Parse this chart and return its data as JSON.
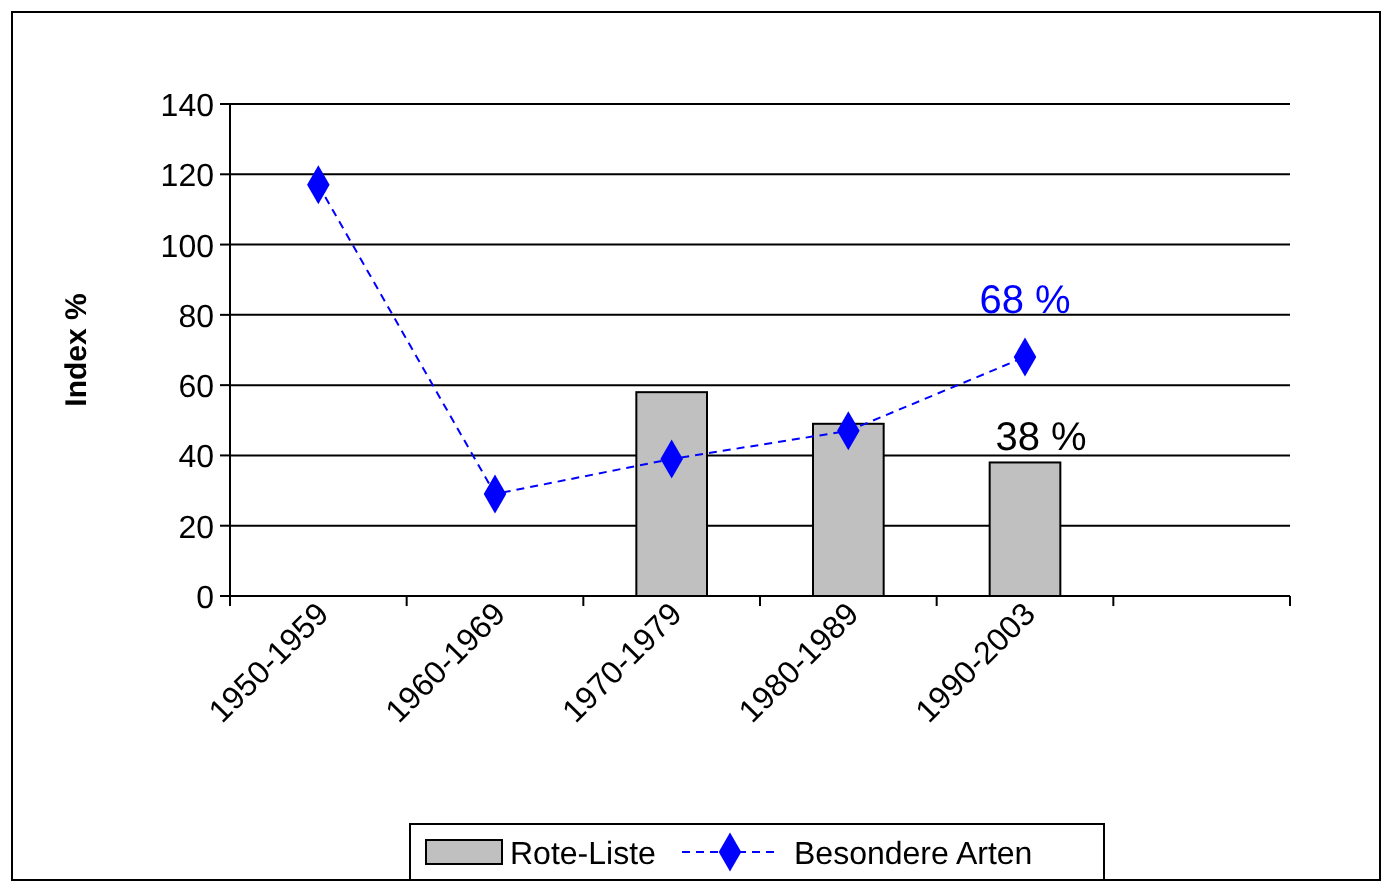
{
  "chart_data": {
    "type": "bar",
    "ylabel": "Index %",
    "categories": [
      "1950-1959",
      "1960-1969",
      "1970-1979",
      "1980-1989",
      "1990-2003",
      null
    ],
    "series": [
      {
        "name": "Rote-Liste",
        "color": "#c0c0c0",
        "values": [
          null,
          null,
          58,
          49,
          38,
          null
        ],
        "value_labels": [
          null,
          null,
          null,
          null,
          "38 %",
          null
        ]
      },
      {
        "name": "Besondere Arten",
        "type": "line",
        "color": "#0000ff",
        "values": [
          117,
          29,
          39,
          47,
          68,
          null
        ],
        "value_labels": [
          null,
          null,
          null,
          null,
          "68 %",
          null
        ],
        "marker": "diamond",
        "line_style": "dashed"
      }
    ],
    "ylim": [
      0,
      140
    ],
    "yticks": [
      0,
      20,
      40,
      60,
      80,
      100,
      120,
      140
    ],
    "grid": "y",
    "legend": "bottom"
  }
}
